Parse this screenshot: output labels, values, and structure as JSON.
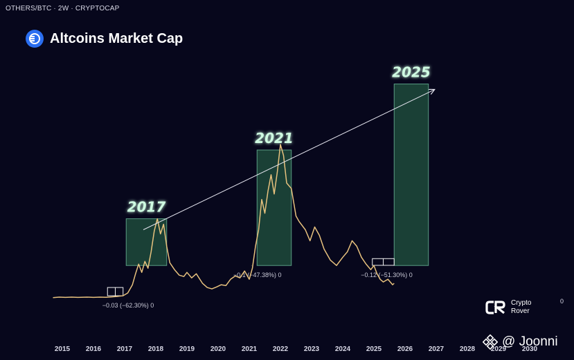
{
  "symbol_line": "OTHERS/BTC · 2W · CRYPTOCAP",
  "header": {
    "title": "Altcoins Market Cap",
    "logo_icon": "market-cap-logo-icon"
  },
  "brand": {
    "name_line1": "Crypto",
    "name_line2": "Rover",
    "logo_icon": "crypto-rover-logo-icon"
  },
  "watermark": {
    "text": "@ Joonni",
    "icon": "binance-diamond-icon"
  },
  "right_axis_label": "0",
  "colors": {
    "background": "#07071c",
    "price_line": "#e8c27e",
    "cycle_box": "#1d4a3b",
    "cycle_box_border": "#5a9c83",
    "trend_line": "#e6e6f0"
  },
  "chart_data": {
    "type": "line",
    "title": "Altcoins Market Cap",
    "symbol": "OTHERS/BTC",
    "interval": "2W",
    "x_axis": {
      "tick_labels": [
        "2015",
        "2016",
        "2017",
        "2018",
        "2019",
        "2020",
        "2021",
        "2022",
        "2023",
        "2024",
        "2025",
        "2026",
        "2027",
        "2028",
        "2029",
        "2030"
      ],
      "range": [
        2014.6,
        2030.6
      ]
    },
    "series": [
      {
        "points": [
          [
            2014.7,
            0.03
          ],
          [
            2014.9,
            0.05
          ],
          [
            2015.1,
            0.04
          ],
          [
            2015.3,
            0.05
          ],
          [
            2015.5,
            0.04
          ],
          [
            2015.8,
            0.05
          ],
          [
            2016.0,
            0.04
          ],
          [
            2016.2,
            0.05
          ],
          [
            2016.4,
            0.045
          ],
          [
            2016.6,
            0.06
          ],
          [
            2016.8,
            0.08
          ],
          [
            2016.95,
            0.1
          ],
          [
            2017.1,
            0.2
          ],
          [
            2017.25,
            0.5
          ],
          [
            2017.35,
            0.9
          ],
          [
            2017.45,
            1.25
          ],
          [
            2017.55,
            0.95
          ],
          [
            2017.65,
            1.35
          ],
          [
            2017.75,
            1.1
          ],
          [
            2017.85,
            1.7
          ],
          [
            2017.95,
            2.45
          ],
          [
            2018.05,
            2.9
          ],
          [
            2018.15,
            2.35
          ],
          [
            2018.25,
            2.7
          ],
          [
            2018.35,
            1.9
          ],
          [
            2018.45,
            1.3
          ],
          [
            2018.6,
            1.05
          ],
          [
            2018.75,
            0.85
          ],
          [
            2018.9,
            0.8
          ],
          [
            2019.0,
            0.95
          ],
          [
            2019.15,
            0.75
          ],
          [
            2019.3,
            0.9
          ],
          [
            2019.5,
            0.55
          ],
          [
            2019.65,
            0.4
          ],
          [
            2019.8,
            0.35
          ],
          [
            2019.95,
            0.42
          ],
          [
            2020.1,
            0.5
          ],
          [
            2020.25,
            0.47
          ],
          [
            2020.4,
            0.7
          ],
          [
            2020.55,
            0.82
          ],
          [
            2020.7,
            0.75
          ],
          [
            2020.85,
            1.0
          ],
          [
            2021.0,
            0.7
          ],
          [
            2021.1,
            1.1
          ],
          [
            2021.2,
            1.9
          ],
          [
            2021.3,
            2.5
          ],
          [
            2021.4,
            3.6
          ],
          [
            2021.5,
            3.1
          ],
          [
            2021.6,
            3.9
          ],
          [
            2021.7,
            4.5
          ],
          [
            2021.8,
            3.8
          ],
          [
            2021.9,
            4.6
          ],
          [
            2022.0,
            5.6
          ],
          [
            2022.1,
            5.2
          ],
          [
            2022.2,
            4.2
          ],
          [
            2022.35,
            4.0
          ],
          [
            2022.5,
            3.0
          ],
          [
            2022.6,
            2.8
          ],
          [
            2022.8,
            2.5
          ],
          [
            2022.95,
            2.1
          ],
          [
            2023.1,
            2.6
          ],
          [
            2023.25,
            2.3
          ],
          [
            2023.4,
            1.8
          ],
          [
            2023.6,
            1.4
          ],
          [
            2023.8,
            1.2
          ],
          [
            2024.0,
            1.5
          ],
          [
            2024.15,
            1.7
          ],
          [
            2024.3,
            2.1
          ],
          [
            2024.45,
            1.9
          ],
          [
            2024.6,
            1.5
          ],
          [
            2024.75,
            1.25
          ],
          [
            2024.9,
            1.05
          ],
          [
            2025.0,
            1.2
          ],
          [
            2025.1,
            0.9
          ],
          [
            2025.2,
            0.7
          ],
          [
            2025.3,
            0.6
          ],
          [
            2025.45,
            0.7
          ],
          [
            2025.6,
            0.5
          ],
          [
            2025.65,
            0.55
          ]
        ]
      }
    ],
    "cycle_labels": [
      "2017",
      "2021",
      "2025"
    ],
    "cycle_boxes": [
      {
        "label": "2017",
        "x_from": 2017.05,
        "x_to": 2018.35,
        "y_top": 2.9
      },
      {
        "label": "2021",
        "x_from": 2021.25,
        "x_to": 2022.35,
        "y_top": 5.4
      },
      {
        "label": "2025",
        "x_from": 2025.65,
        "x_to": 2026.75,
        "y_top": 7.8
      }
    ],
    "drawdown_labels": [
      {
        "text": "−0.03 (−62.30%) 0",
        "x": 2016.8,
        "x_from": 2016.45,
        "x_to": 2016.95,
        "y_top": 0.4
      },
      {
        "text": "−0.1 (−47.38%) 0",
        "x": 2020.95,
        "x_from": 2020.9,
        "x_to": 2021.25,
        "y_top": 1.2
      },
      {
        "text": "−0.12 (−51.30%) 0",
        "x": 2025.1,
        "x_from": 2024.95,
        "x_to": 2025.65,
        "y_top": 1.45
      }
    ],
    "trend_line": {
      "from": [
        2017.6,
        2.5
      ],
      "to": [
        2026.95,
        7.6
      ]
    },
    "grid": false
  }
}
